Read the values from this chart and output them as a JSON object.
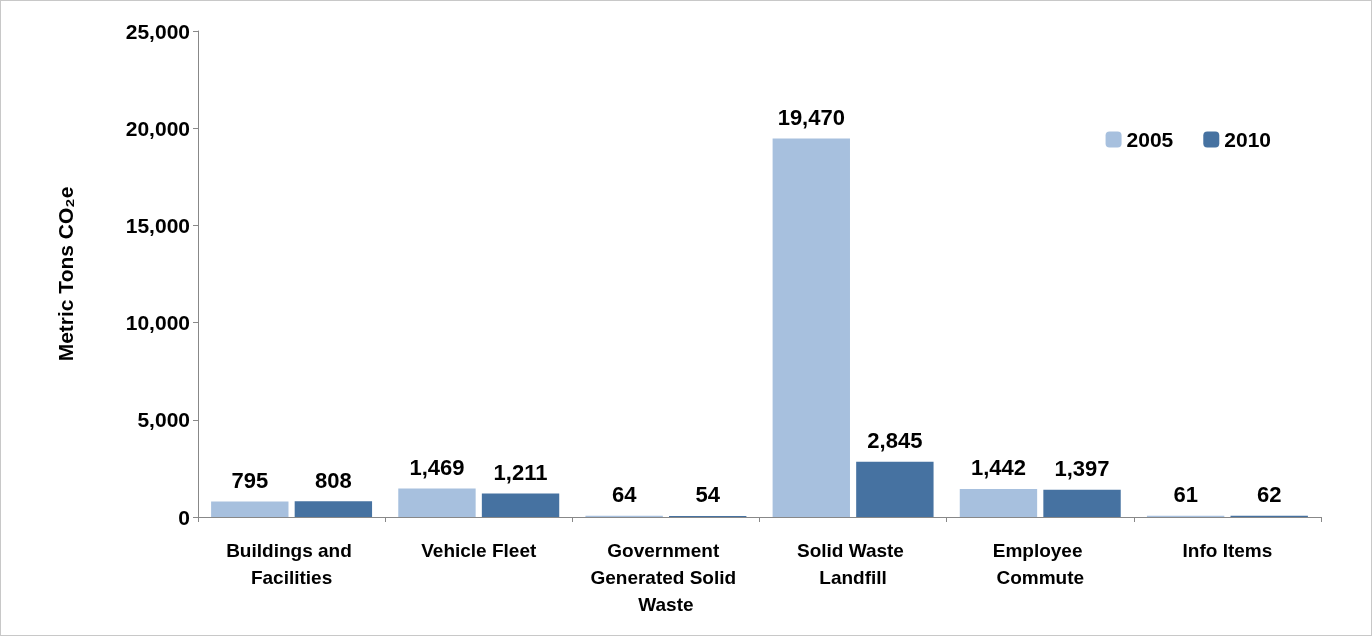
{
  "chart_data": {
    "type": "bar",
    "ylabel": "Metric Tons CO₂e",
    "categories": [
      "Buildings and Facilities",
      "Vehicle Fleet",
      "Government Generated Solid Waste",
      "Solid Waste Landfill",
      "Employee Commute",
      "Info Items"
    ],
    "series": [
      {
        "name": "2005",
        "color": "#a7c0de",
        "values": [
          795,
          1469,
          64,
          19470,
          1442,
          61
        ],
        "value_labels": [
          "795",
          "1,469",
          "64",
          "19,470",
          "1,442",
          "61"
        ]
      },
      {
        "name": "2010",
        "color": "#4672a1",
        "values": [
          808,
          1211,
          54,
          2845,
          1397,
          62
        ],
        "value_labels": [
          "808",
          "1,211",
          "54",
          "2,845",
          "1,397",
          "62"
        ]
      }
    ],
    "ylim": [
      0,
      25000
    ],
    "yticks": [
      0,
      {
        "value": 5000,
        "label": "5,000"
      },
      {
        "value": 10000,
        "label": "10,000"
      },
      {
        "value": 15000,
        "label": "15,000"
      },
      {
        "value": 20000,
        "label": "20,000"
      },
      {
        "value": 25000,
        "label": "25,000"
      }
    ],
    "grid": false,
    "legend": "top right"
  }
}
